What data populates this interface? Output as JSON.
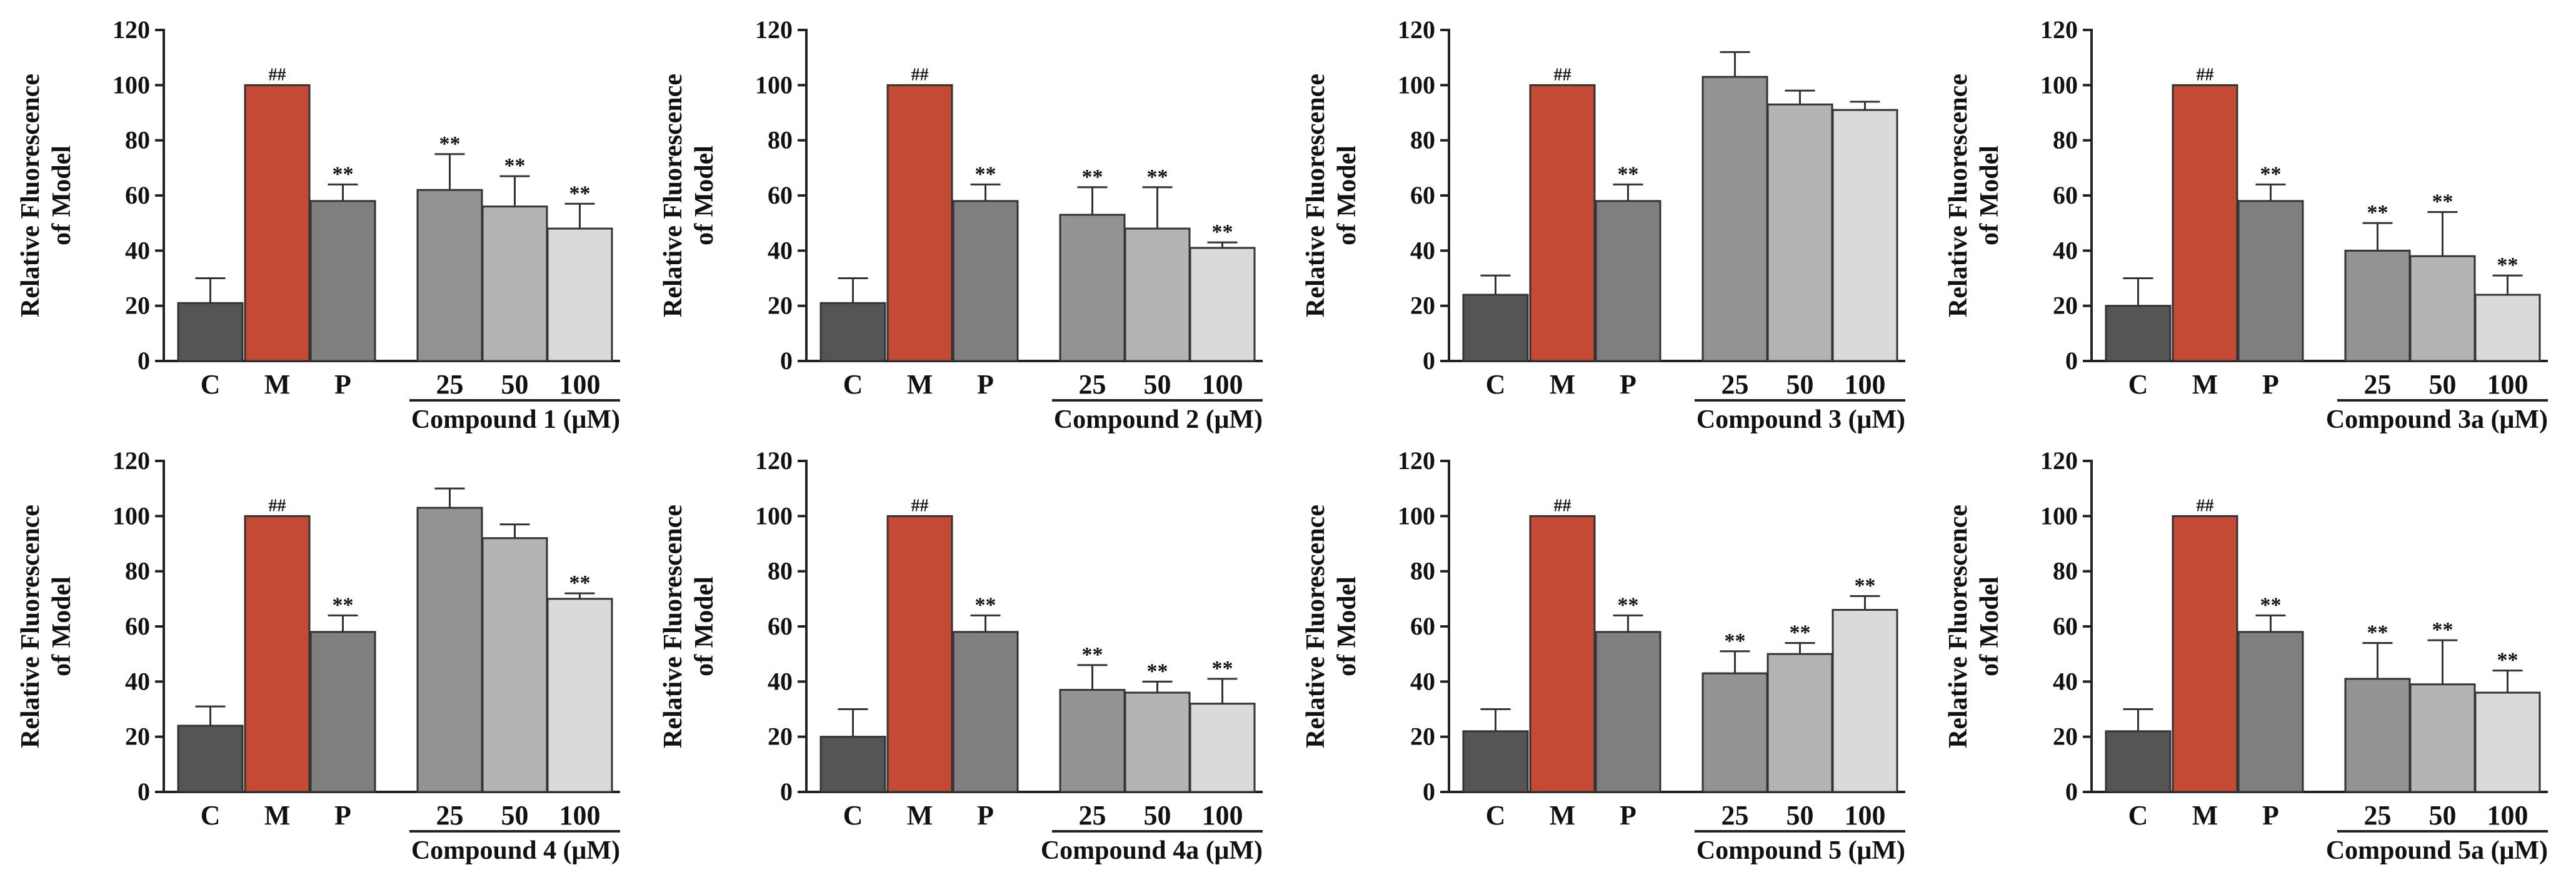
{
  "figure": {
    "layout": {
      "rows": 2,
      "cols": 4
    },
    "colors": {
      "C": "#555555",
      "M": "#c44a36",
      "P": "#7f7f7f",
      "25": "#939393",
      "50": "#b4b4b4",
      "100": "#dadada",
      "axis": "#222222",
      "text": "#111111"
    }
  },
  "chart_data": [
    {
      "type": "bar",
      "title": "",
      "ylabel": "Relative Fluorescence of Model",
      "ylabel_lines": [
        "Relative Fluorescence",
        "of Model"
      ],
      "xlabel": "Compound 1 (μM)",
      "ylim": [
        0,
        120
      ],
      "yticks": [
        "0",
        "20",
        "40",
        "60",
        "80",
        "100",
        "120"
      ],
      "categories": [
        "C",
        "M",
        "P",
        "25",
        "50",
        "100"
      ],
      "values": [
        21,
        100,
        58,
        62,
        56,
        48
      ],
      "errors": [
        9,
        0,
        6,
        13,
        11,
        9
      ],
      "annotations": [
        "",
        "##",
        "**",
        "**",
        "**",
        "**"
      ]
    },
    {
      "type": "bar",
      "title": "",
      "ylabel": "Relative Fluorescence of Model",
      "ylabel_lines": [
        "Relative Fluorescence",
        "of Model"
      ],
      "xlabel": "Compound 2 (μM)",
      "ylim": [
        0,
        120
      ],
      "yticks": [
        "0",
        "20",
        "40",
        "60",
        "80",
        "100",
        "120"
      ],
      "categories": [
        "C",
        "M",
        "P",
        "25",
        "50",
        "100"
      ],
      "values": [
        21,
        100,
        58,
        53,
        48,
        41
      ],
      "errors": [
        9,
        0,
        6,
        10,
        15,
        2
      ],
      "annotations": [
        "",
        "##",
        "**",
        "**",
        "**",
        "**"
      ]
    },
    {
      "type": "bar",
      "title": "",
      "ylabel": "Relative Fluorescence of Model",
      "ylabel_lines": [
        "Relative Fluorescence",
        "of Model"
      ],
      "xlabel": "Compound 3 (μM)",
      "ylim": [
        0,
        120
      ],
      "yticks": [
        "0",
        "20",
        "40",
        "60",
        "80",
        "100",
        "120"
      ],
      "categories": [
        "C",
        "M",
        "P",
        "25",
        "50",
        "100"
      ],
      "values": [
        24,
        100,
        58,
        103,
        93,
        91
      ],
      "errors": [
        7,
        0,
        6,
        9,
        5,
        3
      ],
      "annotations": [
        "",
        "##",
        "**",
        "",
        "",
        ""
      ]
    },
    {
      "type": "bar",
      "title": "",
      "ylabel": "Relative Fluorescence of Model",
      "ylabel_lines": [
        "Relative Fluorescence",
        "of Model"
      ],
      "xlabel": "Compound 3a (μM)",
      "ylim": [
        0,
        120
      ],
      "yticks": [
        "0",
        "20",
        "40",
        "60",
        "80",
        "100",
        "120"
      ],
      "categories": [
        "C",
        "M",
        "P",
        "25",
        "50",
        "100"
      ],
      "values": [
        20,
        100,
        58,
        40,
        38,
        24
      ],
      "errors": [
        10,
        0,
        6,
        10,
        16,
        7
      ],
      "annotations": [
        "",
        "##",
        "**",
        "**",
        "**",
        "**"
      ]
    },
    {
      "type": "bar",
      "title": "",
      "ylabel": "Relative Fluorescence of Model",
      "ylabel_lines": [
        "Relative Fluorescence",
        "of Model"
      ],
      "xlabel": "Compound 4 (μM)",
      "ylim": [
        0,
        120
      ],
      "yticks": [
        "0",
        "20",
        "40",
        "60",
        "80",
        "100",
        "120"
      ],
      "categories": [
        "C",
        "M",
        "P",
        "25",
        "50",
        "100"
      ],
      "values": [
        24,
        100,
        58,
        103,
        92,
        70
      ],
      "errors": [
        7,
        0,
        6,
        7,
        5,
        2
      ],
      "annotations": [
        "",
        "##",
        "**",
        "",
        "",
        "**"
      ]
    },
    {
      "type": "bar",
      "title": "",
      "ylabel": "Relative Fluorescence of Model",
      "ylabel_lines": [
        "Relative Fluorescence",
        "of Model"
      ],
      "xlabel": "Compound 4a (μM)",
      "ylim": [
        0,
        120
      ],
      "yticks": [
        "0",
        "20",
        "40",
        "60",
        "80",
        "100",
        "120"
      ],
      "categories": [
        "C",
        "M",
        "P",
        "25",
        "50",
        "100"
      ],
      "values": [
        20,
        100,
        58,
        37,
        36,
        32
      ],
      "errors": [
        10,
        0,
        6,
        9,
        4,
        9
      ],
      "annotations": [
        "",
        "##",
        "**",
        "**",
        "**",
        "**"
      ]
    },
    {
      "type": "bar",
      "title": "",
      "ylabel": "Relative Fluorescence of Model",
      "ylabel_lines": [
        "Relative Fluorescence",
        "of Model"
      ],
      "xlabel": "Compound 5 (μM)",
      "ylim": [
        0,
        120
      ],
      "yticks": [
        "0",
        "20",
        "40",
        "60",
        "80",
        "100",
        "120"
      ],
      "categories": [
        "C",
        "M",
        "P",
        "25",
        "50",
        "100"
      ],
      "values": [
        22,
        100,
        58,
        43,
        50,
        66
      ],
      "errors": [
        8,
        0,
        6,
        8,
        4,
        5
      ],
      "annotations": [
        "",
        "##",
        "**",
        "**",
        "**",
        "**"
      ]
    },
    {
      "type": "bar",
      "title": "",
      "ylabel": "Relative Fluorescence of Model",
      "ylabel_lines": [
        "Relative Fluorescence",
        "of Model"
      ],
      "xlabel": "Compound 5a (μM)",
      "ylim": [
        0,
        120
      ],
      "yticks": [
        "0",
        "20",
        "40",
        "60",
        "80",
        "100",
        "120"
      ],
      "categories": [
        "C",
        "M",
        "P",
        "25",
        "50",
        "100"
      ],
      "values": [
        22,
        100,
        58,
        41,
        39,
        36
      ],
      "errors": [
        8,
        0,
        6,
        13,
        16,
        8
      ],
      "annotations": [
        "",
        "##",
        "**",
        "**",
        "**",
        "**"
      ]
    }
  ]
}
